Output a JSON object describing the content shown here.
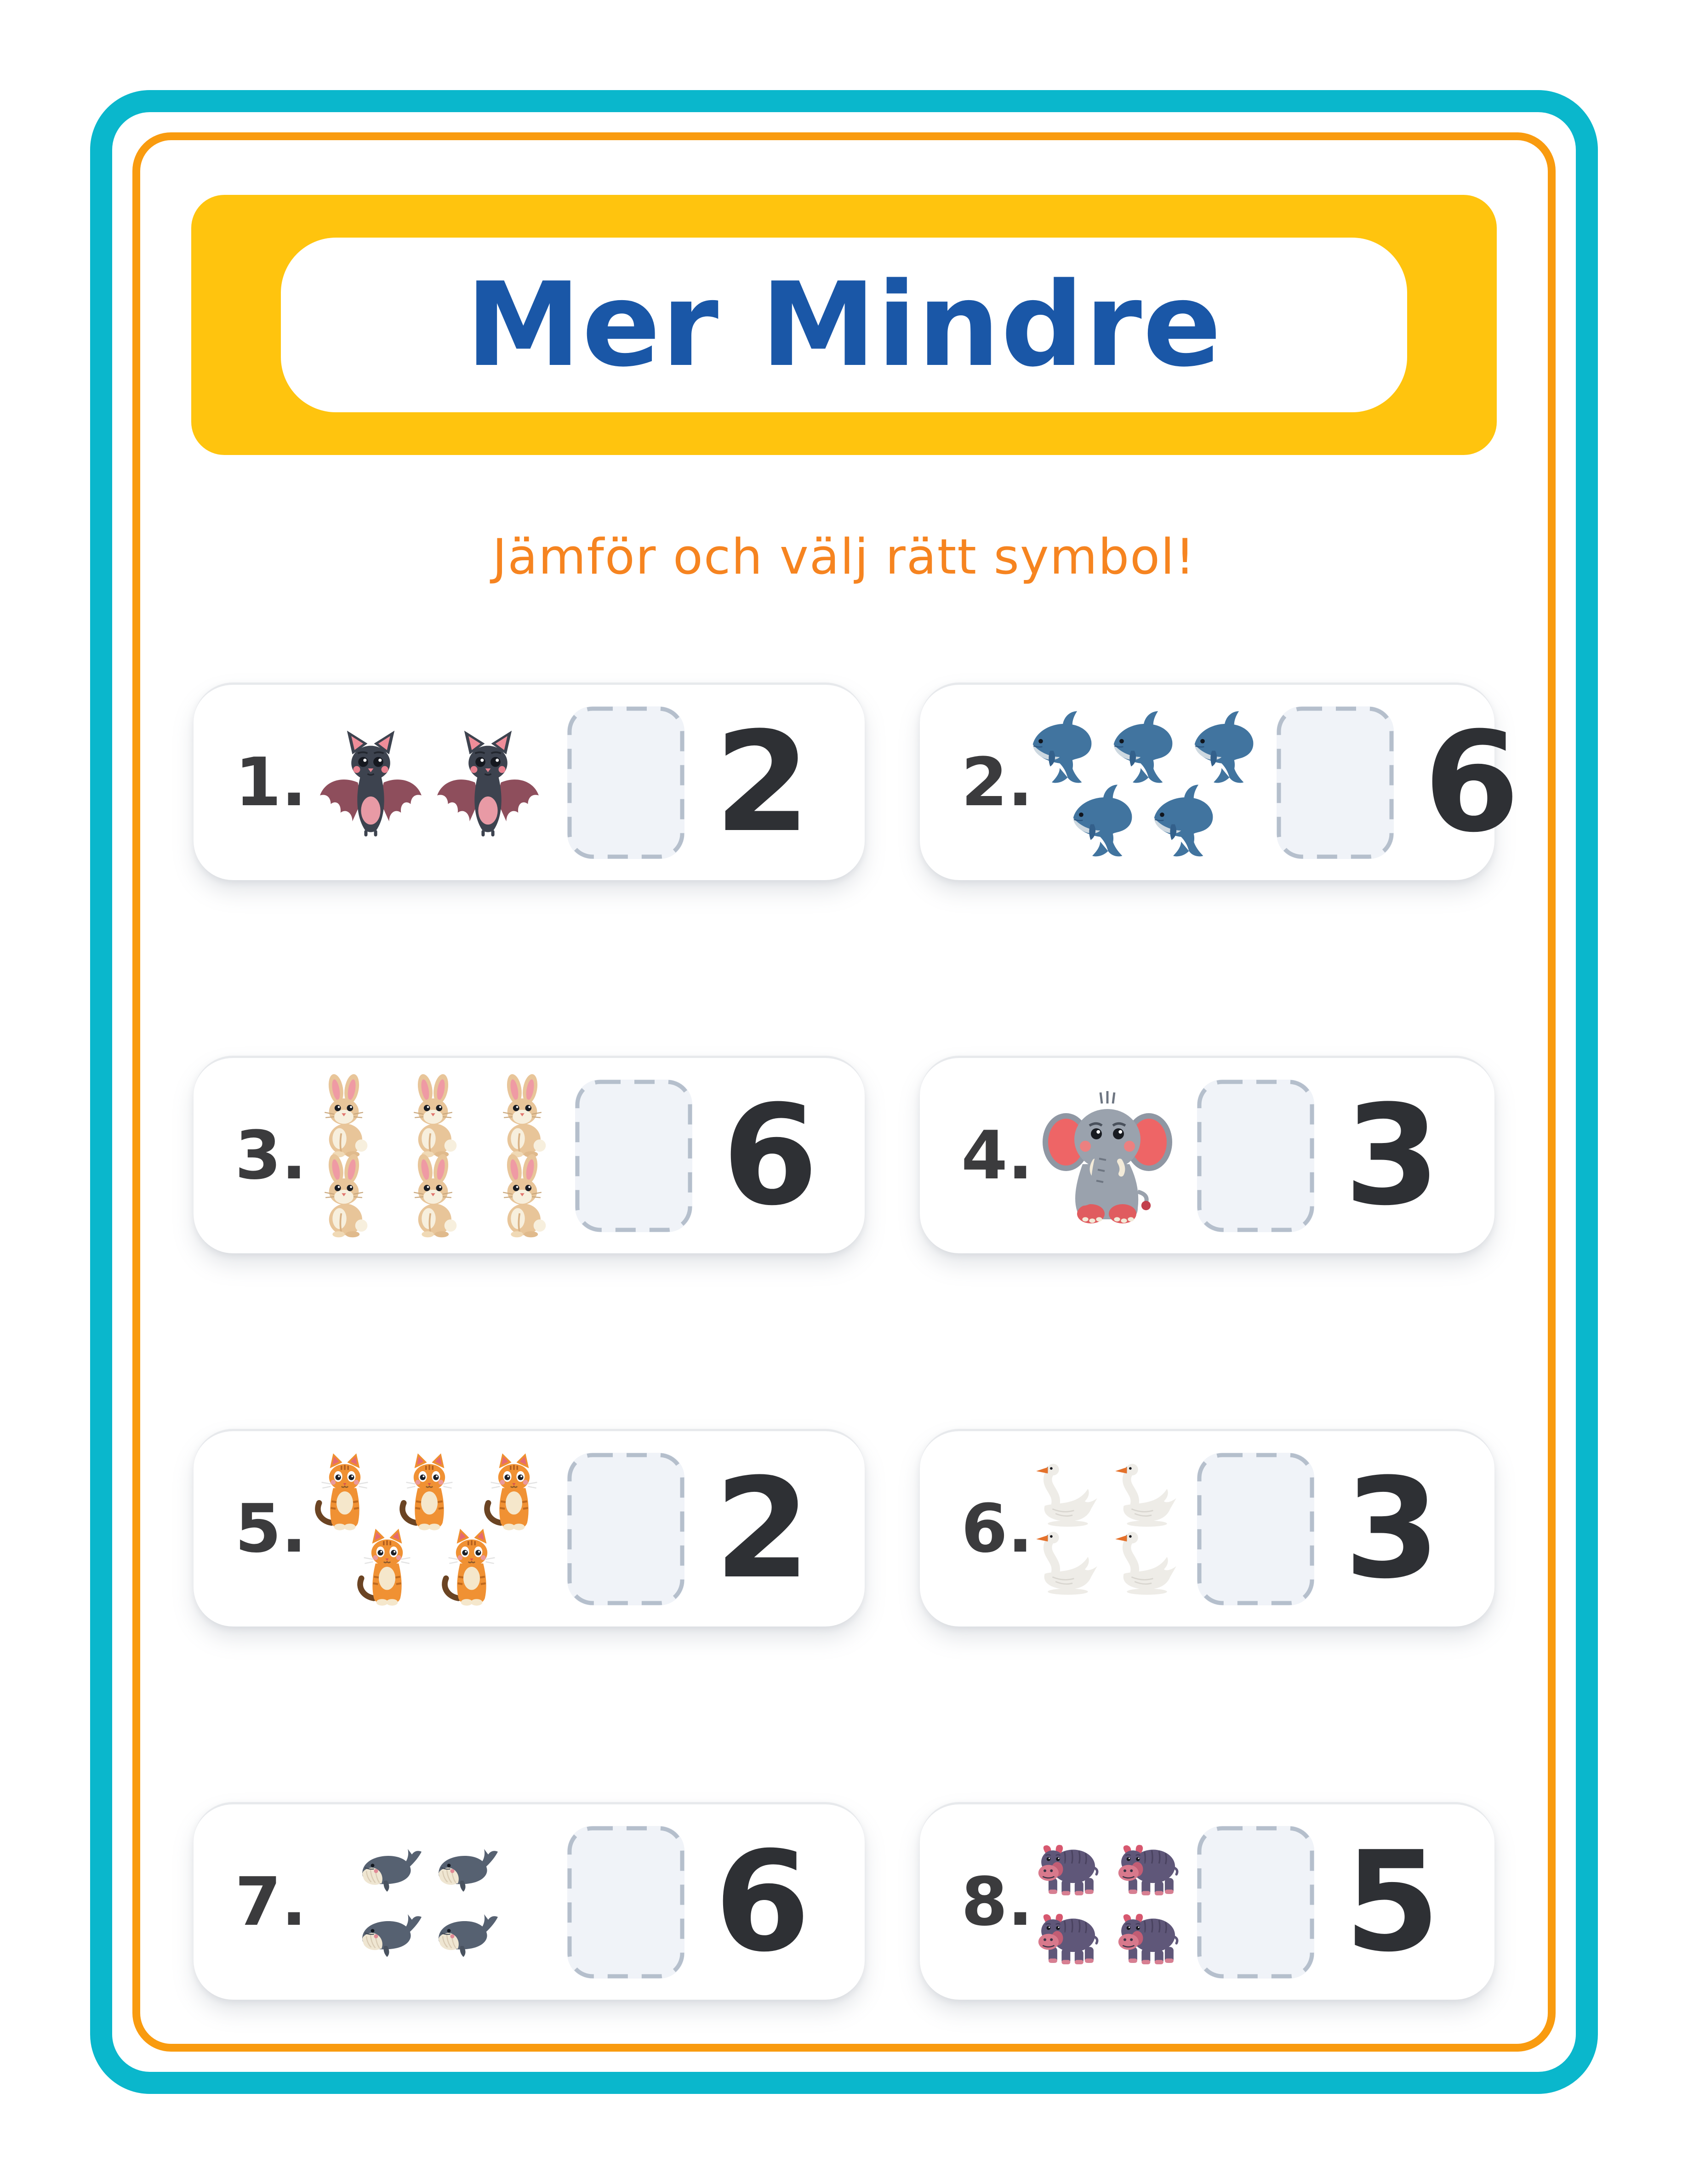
{
  "title": {
    "text": "Mer Mindre"
  },
  "subtitle": {
    "text": "Jämför och välj rätt symbol!"
  },
  "colors": {
    "outer_frame": "#0ab7cc",
    "inner_frame": "#f99b0f",
    "banner": "#ffc40e",
    "title_text": "#1a57a7",
    "subtitle_text": "#f68420",
    "problem_number_text": "#3b3b3d",
    "comparison_number_text": "#2e3034",
    "answer_box_fill": "#f0f3f8",
    "answer_box_dash": "#b5bfcc"
  },
  "problems": [
    {
      "label": "1.",
      "animal": "bat",
      "animal_icon": "bat-icon",
      "count": 2,
      "rows": [
        2
      ],
      "compare_to": "2"
    },
    {
      "label": "2.",
      "animal": "dolphin",
      "animal_icon": "dolphin-icon",
      "count": 5,
      "rows": [
        3,
        2
      ],
      "compare_to": "6"
    },
    {
      "label": "3.",
      "animal": "rabbit",
      "animal_icon": "rabbit-icon",
      "count": 6,
      "rows": [
        3,
        3
      ],
      "compare_to": "6"
    },
    {
      "label": "4.",
      "animal": "elephant",
      "animal_icon": "elephant-icon",
      "count": 1,
      "rows": [
        1
      ],
      "compare_to": "3"
    },
    {
      "label": "5.",
      "animal": "cat",
      "animal_icon": "cat-icon",
      "count": 5,
      "rows": [
        3,
        2
      ],
      "compare_to": "2"
    },
    {
      "label": "6.",
      "animal": "swan",
      "animal_icon": "swan-icon",
      "count": 4,
      "rows": [
        2,
        2
      ],
      "compare_to": "3"
    },
    {
      "label": "7.",
      "animal": "whale",
      "animal_icon": "whale-icon",
      "count": 4,
      "rows": [
        2,
        2
      ],
      "compare_to": "6"
    },
    {
      "label": "8.",
      "animal": "hippo",
      "animal_icon": "hippo-icon",
      "count": 4,
      "rows": [
        2,
        2
      ],
      "compare_to": "5"
    }
  ]
}
